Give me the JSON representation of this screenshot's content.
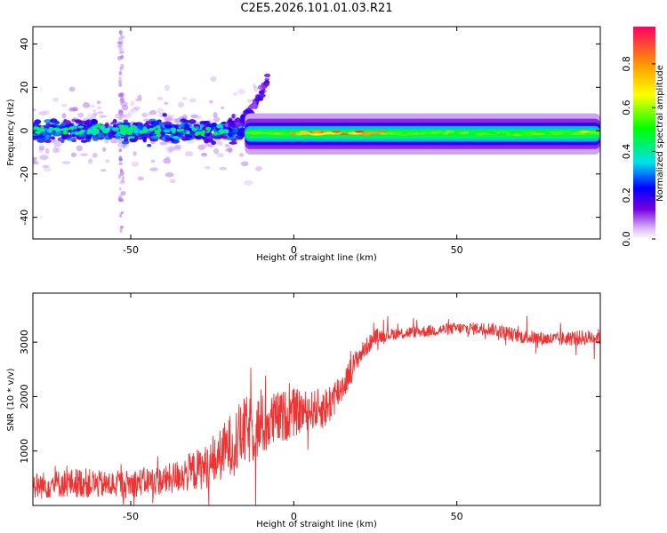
{
  "chart_data": [
    {
      "type": "heatmap",
      "title": "C2E5.2026.101.01.03.R21",
      "xlabel": "Height of straight line (km)",
      "ylabel": "Frequency (Hz)",
      "xlim": [
        -80,
        94
      ],
      "ylim": [
        -50,
        48
      ],
      "xticks": [
        -50,
        0,
        50
      ],
      "yticks": [
        -40,
        -20,
        0,
        20,
        40
      ],
      "grid": false,
      "colorbar": {
        "label": "Normalized spectral amplitude",
        "range": [
          0,
          0.97
        ],
        "ticks": [
          "0.0",
          "0.2",
          "0.4",
          "0.6",
          "0.8"
        ],
        "tick_values": [
          0,
          0.2,
          0.4,
          0.6,
          0.8
        ]
      },
      "features": [
        {
          "name": "noisy band",
          "x_range": [
            -80,
            -15
          ],
          "freq_center": 0,
          "freq_spread": 8,
          "amplitude": 0.3
        },
        {
          "name": "rising arc",
          "x_range": [
            -20,
            -8
          ],
          "freq_range": [
            0,
            25
          ],
          "amplitude": 0.2
        },
        {
          "name": "steady carrier",
          "x_range": [
            -15,
            94
          ],
          "freq_center": -1.5,
          "freq_spread": 3,
          "amplitude": 0.55
        },
        {
          "name": "peak cluster",
          "x_range": [
            0,
            30
          ],
          "freq_center": 0,
          "amplitude": 0.95
        }
      ]
    },
    {
      "type": "line",
      "xlabel": "Height of straight line (km)",
      "ylabel": "SNR (10 * v/v)",
      "xlim": [
        -80,
        94
      ],
      "ylim": [
        0,
        3900
      ],
      "xticks": [
        -50,
        0,
        50
      ],
      "yticks": [
        1000,
        2000,
        3000
      ],
      "grid": false,
      "series": [
        {
          "name": "SNR",
          "color": "#ee3333",
          "x": [
            -80,
            -72,
            -65,
            -58,
            -50,
            -45,
            -40,
            -35,
            -30,
            -25,
            -20,
            -15,
            -10,
            -5,
            0,
            5,
            10,
            15,
            20,
            25,
            30,
            40,
            50,
            60,
            70,
            80,
            94
          ],
          "y": [
            350,
            400,
            420,
            380,
            400,
            450,
            450,
            550,
            650,
            750,
            1100,
            1350,
            1450,
            1600,
            1700,
            1750,
            1800,
            2200,
            2750,
            3100,
            3150,
            3200,
            3250,
            3250,
            3100,
            3050,
            3100
          ],
          "spread": [
            250,
            260,
            280,
            250,
            260,
            260,
            270,
            320,
            380,
            420,
            550,
            650,
            600,
            500,
            450,
            350,
            400,
            300,
            200,
            140,
            110,
            110,
            110,
            120,
            130,
            130,
            150
          ]
        }
      ]
    }
  ]
}
